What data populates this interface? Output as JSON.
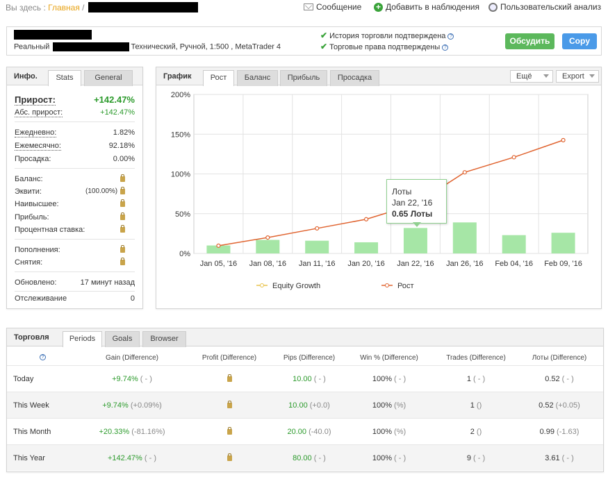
{
  "breadcrumb": {
    "prefix": "Вы здесь :",
    "home": "Главная",
    "sep": "/"
  },
  "actions": {
    "message": "Сообщение",
    "watch": "Добавить в наблюдения",
    "analysis": "Пользовательский анализ"
  },
  "account": {
    "type": "Реальный",
    "details": "Технический, Ручной, 1:500 , MetaTrader 4",
    "verified_history": "История торговли подтверждена",
    "verified_rights": "Торговые права подтверждены"
  },
  "buttons": {
    "discuss": "Обсудить",
    "copy": "Copy"
  },
  "info": {
    "title": "Инфо.",
    "tabs": [
      "Stats",
      "General"
    ],
    "gain_label": "Прирост:",
    "gain_value": "+142.47%",
    "abs_gain_label": "Абс. прирост:",
    "abs_gain_value": "+142.47%",
    "daily_label": "Ежедневно:",
    "daily_value": "1.82%",
    "monthly_label": "Ежемесячно:",
    "monthly_value": "92.18%",
    "drawdown_label": "Просадка:",
    "drawdown_value": "0.00%",
    "balance_label": "Баланс:",
    "equity_label": "Эквити:",
    "equity_pct": "(100.00%)",
    "highest_label": "Наивысшее:",
    "profit_label": "Прибыль:",
    "interest_label": "Процентная ставка:",
    "deposits_label": "Пополнения:",
    "withdrawals_label": "Снятия:",
    "updated_label": "Обновлено:",
    "updated_value": "17 минут назад",
    "tracking_label": "Отслеживание",
    "tracking_value": "0"
  },
  "chart_panel": {
    "title": "График",
    "tabs": [
      "Рост",
      "Баланс",
      "Прибыль",
      "Просадка"
    ],
    "more": "Ещё",
    "export": "Export"
  },
  "tooltip": {
    "title": "Лоты",
    "date": "Jan 22, '16",
    "value": "0.65 Лоты"
  },
  "chart_data": {
    "type": "bar+line",
    "categories": [
      "Jan 05, '16",
      "Jan 08, '16",
      "Jan 11, '16",
      "Jan 20, '16",
      "Jan 22, '16",
      "Jan 26, '16",
      "Feb 04, '16",
      "Feb 09, '16"
    ],
    "y_ticks": [
      "0%",
      "50%",
      "100%",
      "150%",
      "200%"
    ],
    "ylim": [
      0,
      200
    ],
    "series": [
      {
        "name": "Рост",
        "type": "line",
        "color": "#e0632f",
        "values": [
          9.74,
          20.0,
          31.5,
          43.0,
          62.0,
          102.0,
          121.0,
          142.47
        ]
      },
      {
        "name": "Equity Growth",
        "type": "bar",
        "color": "#a6e6a6",
        "values": [
          10,
          17,
          16,
          14,
          32,
          39,
          23,
          26
        ]
      }
    ],
    "legend": [
      "Equity Growth",
      "Рост"
    ],
    "grid": true
  },
  "trading": {
    "title": "Торговля",
    "tabs": [
      "Periods",
      "Goals",
      "Browser"
    ],
    "headers": [
      "Gain (Difference)",
      "Profit (Difference)",
      "Pips (Difference)",
      "Win % (Difference)",
      "Trades (Difference)",
      "Лоты (Difference)"
    ],
    "rows": [
      {
        "period": "Today",
        "gain": "+9.74%",
        "gain_d": "( - )",
        "pips": "10.00",
        "pips_d": "( - )",
        "win": "100%",
        "win_d": "( - )",
        "trades": "1",
        "trades_d": "( - )",
        "lots": "0.52",
        "lots_d": "( - )"
      },
      {
        "period": "This Week",
        "gain": "+9.74%",
        "gain_d": "(+0.09%)",
        "pips": "10.00",
        "pips_d": "(+0.0)",
        "win": "100%",
        "win_d": "(%)",
        "trades": "1",
        "trades_d": "()",
        "lots": "0.52",
        "lots_d": "(+0.05)"
      },
      {
        "period": "This Month",
        "gain": "+20.33%",
        "gain_d": "(-81.16%)",
        "pips": "20.00",
        "pips_d": "(-40.0)",
        "win": "100%",
        "win_d": "(%)",
        "trades": "2",
        "trades_d": "()",
        "lots": "0.99",
        "lots_d": "(-1.63)"
      },
      {
        "period": "This Year",
        "gain": "+142.47%",
        "gain_d": "( - )",
        "pips": "80.00",
        "pips_d": "( - )",
        "win": "100%",
        "win_d": "( - )",
        "trades": "9",
        "trades_d": "( - )",
        "lots": "3.61",
        "lots_d": "( - )"
      }
    ]
  }
}
